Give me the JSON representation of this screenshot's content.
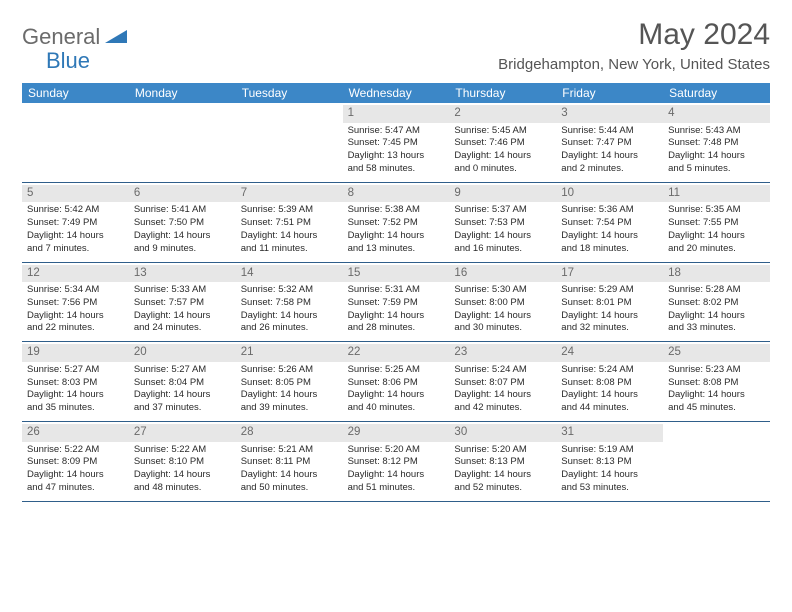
{
  "logo": {
    "general": "General",
    "blue": "Blue"
  },
  "title": "May 2024",
  "location": "Bridgehampton, New York, United States",
  "header_bg": "#3c87c7",
  "daynum_bg": "#e7e7e7",
  "border_color": "#2f5e8a",
  "weekdays": [
    "Sunday",
    "Monday",
    "Tuesday",
    "Wednesday",
    "Thursday",
    "Friday",
    "Saturday"
  ],
  "weeks": [
    [
      {
        "empty": true
      },
      {
        "empty": true
      },
      {
        "empty": true
      },
      {
        "num": "1",
        "sunrise": "5:47 AM",
        "sunset": "7:45 PM",
        "dlh": "13",
        "dlm": "58"
      },
      {
        "num": "2",
        "sunrise": "5:45 AM",
        "sunset": "7:46 PM",
        "dlh": "14",
        "dlm": "0"
      },
      {
        "num": "3",
        "sunrise": "5:44 AM",
        "sunset": "7:47 PM",
        "dlh": "14",
        "dlm": "2"
      },
      {
        "num": "4",
        "sunrise": "5:43 AM",
        "sunset": "7:48 PM",
        "dlh": "14",
        "dlm": "5"
      }
    ],
    [
      {
        "num": "5",
        "sunrise": "5:42 AM",
        "sunset": "7:49 PM",
        "dlh": "14",
        "dlm": "7"
      },
      {
        "num": "6",
        "sunrise": "5:41 AM",
        "sunset": "7:50 PM",
        "dlh": "14",
        "dlm": "9"
      },
      {
        "num": "7",
        "sunrise": "5:39 AM",
        "sunset": "7:51 PM",
        "dlh": "14",
        "dlm": "11"
      },
      {
        "num": "8",
        "sunrise": "5:38 AM",
        "sunset": "7:52 PM",
        "dlh": "14",
        "dlm": "13"
      },
      {
        "num": "9",
        "sunrise": "5:37 AM",
        "sunset": "7:53 PM",
        "dlh": "14",
        "dlm": "16"
      },
      {
        "num": "10",
        "sunrise": "5:36 AM",
        "sunset": "7:54 PM",
        "dlh": "14",
        "dlm": "18"
      },
      {
        "num": "11",
        "sunrise": "5:35 AM",
        "sunset": "7:55 PM",
        "dlh": "14",
        "dlm": "20"
      }
    ],
    [
      {
        "num": "12",
        "sunrise": "5:34 AM",
        "sunset": "7:56 PM",
        "dlh": "14",
        "dlm": "22"
      },
      {
        "num": "13",
        "sunrise": "5:33 AM",
        "sunset": "7:57 PM",
        "dlh": "14",
        "dlm": "24"
      },
      {
        "num": "14",
        "sunrise": "5:32 AM",
        "sunset": "7:58 PM",
        "dlh": "14",
        "dlm": "26"
      },
      {
        "num": "15",
        "sunrise": "5:31 AM",
        "sunset": "7:59 PM",
        "dlh": "14",
        "dlm": "28"
      },
      {
        "num": "16",
        "sunrise": "5:30 AM",
        "sunset": "8:00 PM",
        "dlh": "14",
        "dlm": "30"
      },
      {
        "num": "17",
        "sunrise": "5:29 AM",
        "sunset": "8:01 PM",
        "dlh": "14",
        "dlm": "32"
      },
      {
        "num": "18",
        "sunrise": "5:28 AM",
        "sunset": "8:02 PM",
        "dlh": "14",
        "dlm": "33"
      }
    ],
    [
      {
        "num": "19",
        "sunrise": "5:27 AM",
        "sunset": "8:03 PM",
        "dlh": "14",
        "dlm": "35"
      },
      {
        "num": "20",
        "sunrise": "5:27 AM",
        "sunset": "8:04 PM",
        "dlh": "14",
        "dlm": "37"
      },
      {
        "num": "21",
        "sunrise": "5:26 AM",
        "sunset": "8:05 PM",
        "dlh": "14",
        "dlm": "39"
      },
      {
        "num": "22",
        "sunrise": "5:25 AM",
        "sunset": "8:06 PM",
        "dlh": "14",
        "dlm": "40"
      },
      {
        "num": "23",
        "sunrise": "5:24 AM",
        "sunset": "8:07 PM",
        "dlh": "14",
        "dlm": "42"
      },
      {
        "num": "24",
        "sunrise": "5:24 AM",
        "sunset": "8:08 PM",
        "dlh": "14",
        "dlm": "44"
      },
      {
        "num": "25",
        "sunrise": "5:23 AM",
        "sunset": "8:08 PM",
        "dlh": "14",
        "dlm": "45"
      }
    ],
    [
      {
        "num": "26",
        "sunrise": "5:22 AM",
        "sunset": "8:09 PM",
        "dlh": "14",
        "dlm": "47"
      },
      {
        "num": "27",
        "sunrise": "5:22 AM",
        "sunset": "8:10 PM",
        "dlh": "14",
        "dlm": "48"
      },
      {
        "num": "28",
        "sunrise": "5:21 AM",
        "sunset": "8:11 PM",
        "dlh": "14",
        "dlm": "50"
      },
      {
        "num": "29",
        "sunrise": "5:20 AM",
        "sunset": "8:12 PM",
        "dlh": "14",
        "dlm": "51"
      },
      {
        "num": "30",
        "sunrise": "5:20 AM",
        "sunset": "8:13 PM",
        "dlh": "14",
        "dlm": "52"
      },
      {
        "num": "31",
        "sunrise": "5:19 AM",
        "sunset": "8:13 PM",
        "dlh": "14",
        "dlm": "53"
      },
      {
        "empty": true
      }
    ]
  ]
}
